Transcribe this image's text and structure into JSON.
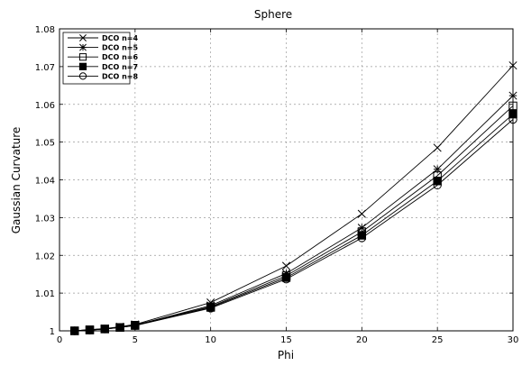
{
  "chart_data": {
    "type": "line",
    "title": "Sphere",
    "xlabel": "Phi",
    "ylabel": "Gaussian Curvature",
    "xlim": [
      0,
      30
    ],
    "ylim": [
      1,
      1.08
    ],
    "xticks": [
      0,
      5,
      10,
      15,
      20,
      25,
      30
    ],
    "yticks": [
      1,
      1.01,
      1.02,
      1.03,
      1.04,
      1.05,
      1.06,
      1.07,
      1.08
    ],
    "xtick_labels": [
      "0",
      "5",
      "10",
      "15",
      "20",
      "25",
      "30"
    ],
    "ytick_labels": [
      "1",
      "1.01",
      "1.02",
      "1.03",
      "1.04",
      "1.05",
      "1.06",
      "1.07",
      "1.08"
    ],
    "grid": true,
    "legend_position": "top-left",
    "x": [
      1,
      2,
      3,
      4,
      5,
      10,
      15,
      20,
      25,
      30
    ],
    "series": [
      {
        "name": "DCO n=4",
        "marker": "x",
        "values": [
          1.0,
          1.0003,
          1.0006,
          1.0011,
          1.0017,
          1.0075,
          1.0172,
          1.031,
          1.0485,
          1.0703
        ]
      },
      {
        "name": "DCO n=5",
        "marker": "star",
        "values": [
          1.0,
          1.0003,
          1.0005,
          1.001,
          1.0015,
          1.0067,
          1.0152,
          1.0273,
          1.0428,
          1.0623
        ]
      },
      {
        "name": "DCO n=6",
        "marker": "square-open",
        "values": [
          1.0,
          1.0003,
          1.0005,
          1.0009,
          1.0015,
          1.0064,
          1.0146,
          1.0262,
          1.0411,
          1.0596
        ]
      },
      {
        "name": "DCO n=7",
        "marker": "square-filled",
        "values": [
          1.0,
          1.0002,
          1.0005,
          1.0009,
          1.0014,
          1.0062,
          1.0141,
          1.0253,
          1.0397,
          1.0574
        ]
      },
      {
        "name": "DCO n=8",
        "marker": "circle-open",
        "values": [
          1.0,
          1.0002,
          1.0005,
          1.0009,
          1.0014,
          1.006,
          1.0137,
          1.0246,
          1.0386,
          1.056
        ]
      }
    ]
  }
}
